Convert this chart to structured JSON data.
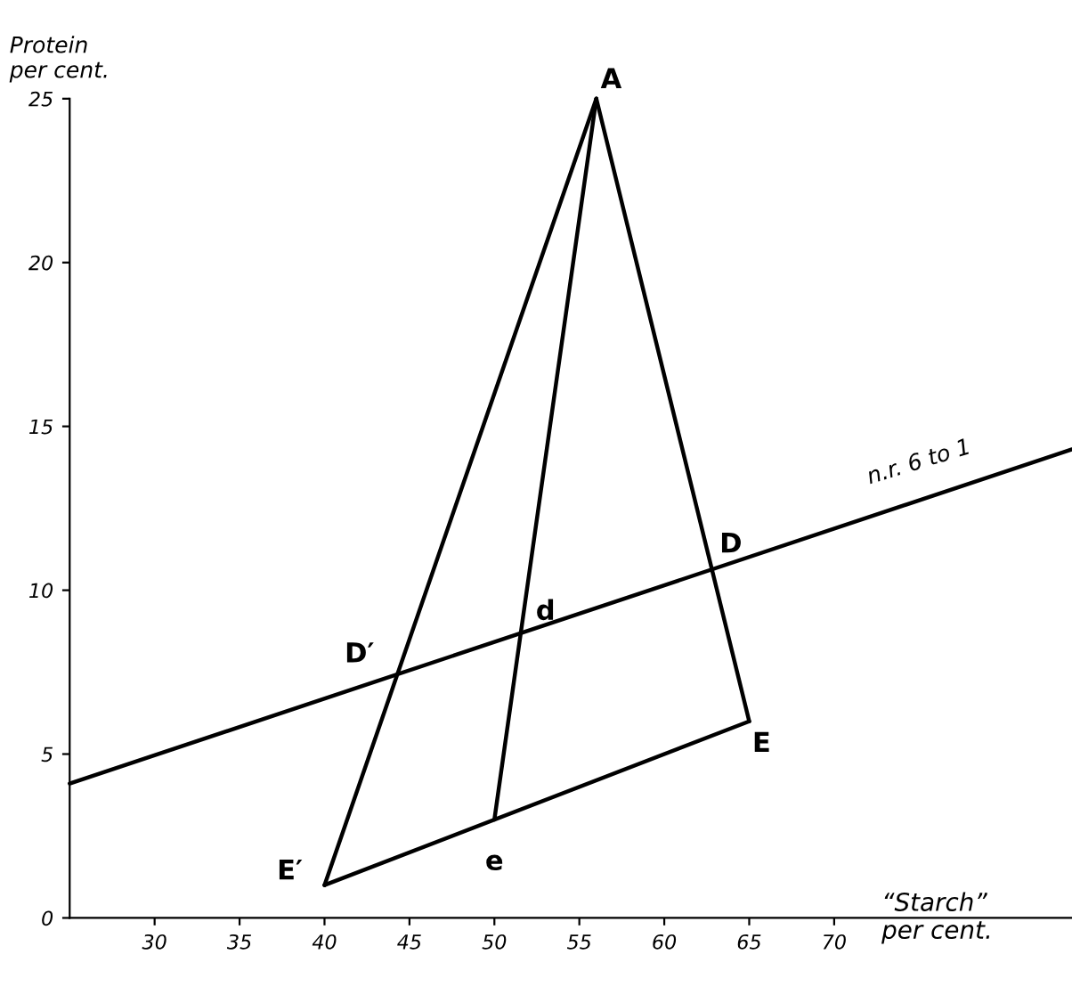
{
  "chart_data": {
    "type": "line",
    "xlabel": "“Starch”\nper cent.",
    "ylabel": "Protein\nper cent.",
    "xlim": [
      25,
      84
    ],
    "ylim": [
      0,
      25
    ],
    "xticks": [
      30,
      35,
      40,
      45,
      50,
      55,
      60,
      65,
      70
    ],
    "yticks": [
      0,
      5,
      10,
      15,
      20,
      25
    ],
    "grid": false,
    "marker": "none",
    "line_style": "solid",
    "series": [
      {
        "color": "#000000",
        "x": [
          56,
          40
        ],
        "values": [
          25,
          1
        ]
      },
      {
        "color": "#000000",
        "x": [
          56,
          65
        ],
        "values": [
          25,
          6
        ]
      },
      {
        "color": "#000000",
        "x": [
          56,
          50
        ],
        "values": [
          25,
          3
        ]
      },
      {
        "color": "#000000",
        "x": [
          40,
          65
        ],
        "values": [
          1,
          6
        ]
      },
      {
        "color": "#000000",
        "x": [
          25,
          84
        ],
        "values": [
          4.1,
          14.3
        ]
      }
    ],
    "annotations": [
      {
        "text": "A",
        "x": 56,
        "y": 25
      },
      {
        "text": "D",
        "x": 62.9,
        "y": 10.6
      },
      {
        "text": "D′",
        "x": 44.1,
        "y": 7.4
      },
      {
        "text": "d",
        "x": 51.7,
        "y": 8.7
      },
      {
        "text": "E",
        "x": 65,
        "y": 6
      },
      {
        "text": "E′",
        "x": 40,
        "y": 1
      },
      {
        "text": "e",
        "x": 50,
        "y": 3
      },
      {
        "text": "n.r. 6 to 1",
        "x": 75,
        "y": 12.8
      }
    ]
  }
}
